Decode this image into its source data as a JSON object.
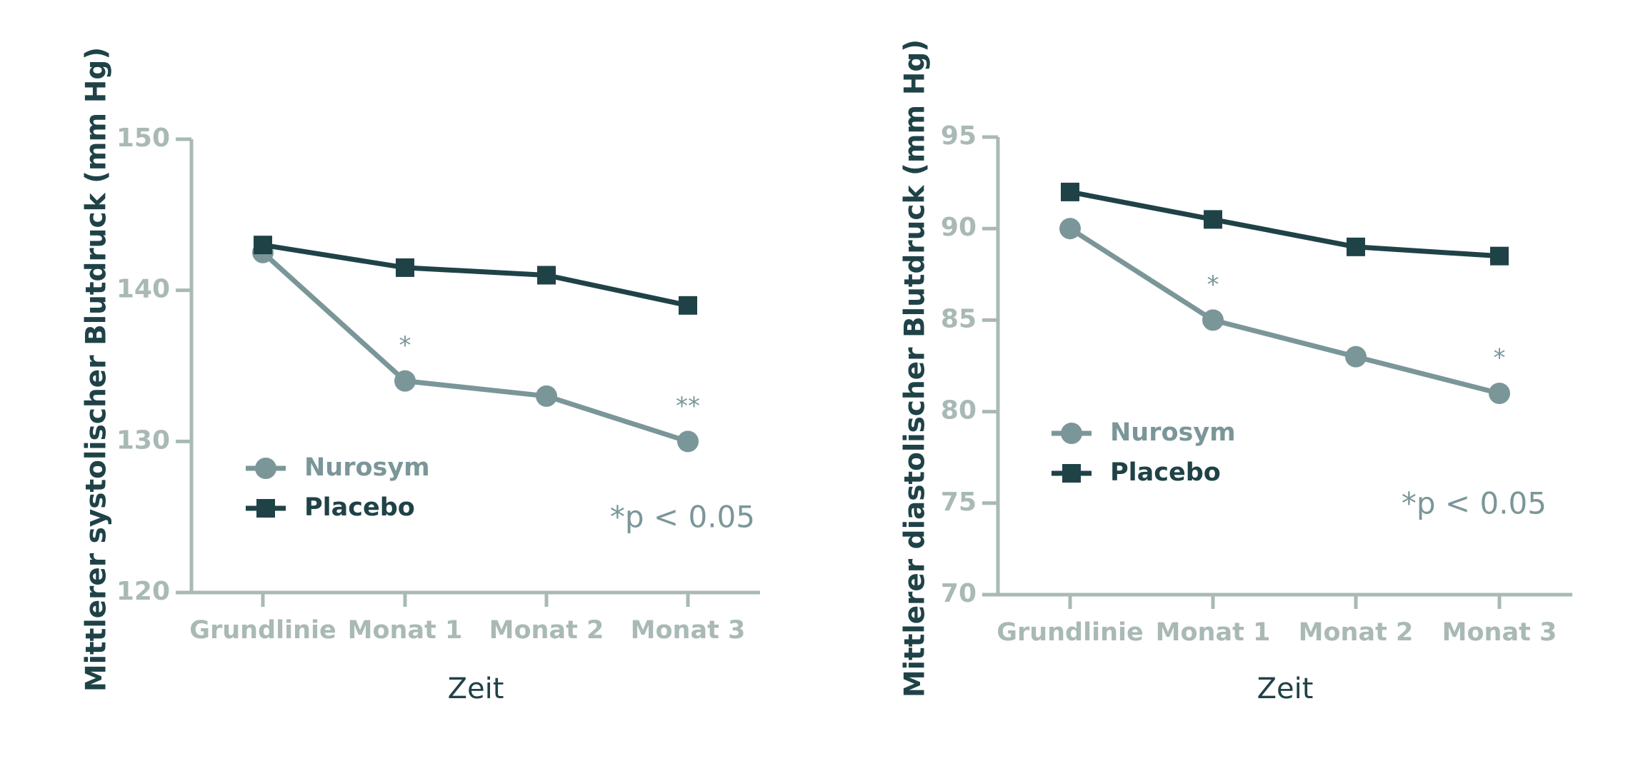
{
  "chart_data": [
    {
      "type": "line",
      "y_label": "Mittlerer systolischer Blutdruck (mm Hg)",
      "x_label": "Zeit",
      "categories": [
        "Grundlinie",
        "Monat 1",
        "Monat 2",
        "Monat 3"
      ],
      "series": [
        {
          "name": "Nurosym",
          "color": "#7b9699",
          "marker": "circle",
          "values": [
            142.5,
            134,
            133,
            130
          ]
        },
        {
          "name": "Placebo",
          "color": "#1f4247",
          "marker": "square",
          "values": [
            143,
            141.5,
            141,
            139
          ]
        }
      ],
      "annotations": [
        null,
        "*",
        null,
        "**"
      ],
      "note": "*p < 0.05",
      "ylim": [
        120,
        150
      ],
      "yticks": [
        120,
        130,
        140,
        150
      ]
    },
    {
      "type": "line",
      "y_label": "Mittlerer diastolischer Blutdruck (mm Hg)",
      "x_label": "Zeit",
      "categories": [
        "Grundlinie",
        "Monat 1",
        "Monat 2",
        "Monat 3"
      ],
      "series": [
        {
          "name": "Nurosym",
          "color": "#7b9699",
          "marker": "circle",
          "values": [
            90,
            85,
            83,
            81
          ]
        },
        {
          "name": "Placebo",
          "color": "#1f4247",
          "marker": "square",
          "values": [
            92,
            90.5,
            89,
            88.5
          ]
        }
      ],
      "annotations": [
        null,
        "*",
        null,
        "*"
      ],
      "note": "*p < 0.05",
      "ylim": [
        70,
        95
      ],
      "yticks": [
        70,
        75,
        80,
        85,
        90,
        95
      ]
    }
  ]
}
